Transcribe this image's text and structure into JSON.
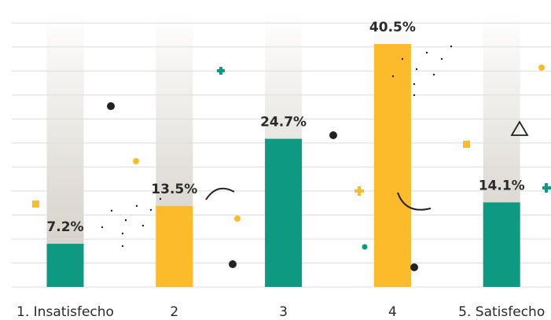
{
  "chart_data": {
    "type": "bar",
    "categories": [
      "1. Insatisfecho",
      "2",
      "3",
      "4",
      "5. Satisfecho"
    ],
    "values": [
      7.2,
      13.5,
      24.7,
      40.5,
      14.1
    ],
    "value_labels": [
      "7.2%",
      "13.5%",
      "24.7%",
      "40.5%",
      "14.1%"
    ],
    "colors": [
      "#0e9a82",
      "#fbbb2a",
      "#0e9a82",
      "#fbbb2a",
      "#0e9a82"
    ],
    "ylim": [
      0,
      46
    ],
    "yticks": [
      0,
      4,
      8,
      12,
      16,
      20,
      24,
      28,
      32,
      36,
      40,
      44
    ],
    "grid": true
  }
}
